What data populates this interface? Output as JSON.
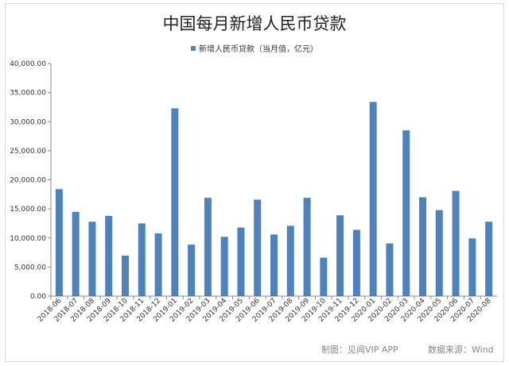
{
  "chart_data": {
    "type": "bar",
    "title": "中国每月新增人民币贷款",
    "legend": {
      "position": "top",
      "entries": [
        "新增人民币贷款（当月值，亿元）"
      ]
    },
    "categories": [
      "2018-06",
      "2018-07",
      "2018-08",
      "2018-09",
      "2018-10",
      "2018-11",
      "2018-12",
      "2019-01",
      "2019-02",
      "2019-03",
      "2019-04",
      "2019-05",
      "2019-06",
      "2019-07",
      "2019-08",
      "2019-09",
      "2019-10",
      "2019-11",
      "2019-12",
      "2020-01",
      "2020-02",
      "2020-03",
      "2020-04",
      "2020-05",
      "2020-06",
      "2020-07",
      "2020-08"
    ],
    "series": [
      {
        "name": "新增人民币贷款（当月值，亿元）",
        "color": "#4f81bd",
        "values": [
          18400,
          14500,
          12800,
          13800,
          6970,
          12500,
          10800,
          32300,
          8858,
          16900,
          10200,
          11800,
          16600,
          10600,
          12100,
          16900,
          6613,
          13900,
          11400,
          33400,
          9057,
          28500,
          17000,
          14800,
          18100,
          9927,
          12800
        ]
      }
    ],
    "ylim": [
      0,
      40000
    ],
    "yticks": [
      "0.00",
      "5,000.00",
      "10,000.00",
      "15,000.00",
      "20,000.00",
      "25,000.00",
      "30,000.00",
      "35,000.00",
      "40,000.00"
    ],
    "grid": false
  },
  "footer": {
    "credit": "制图：见闻VIP APP",
    "source": "数据来源：Wind"
  }
}
